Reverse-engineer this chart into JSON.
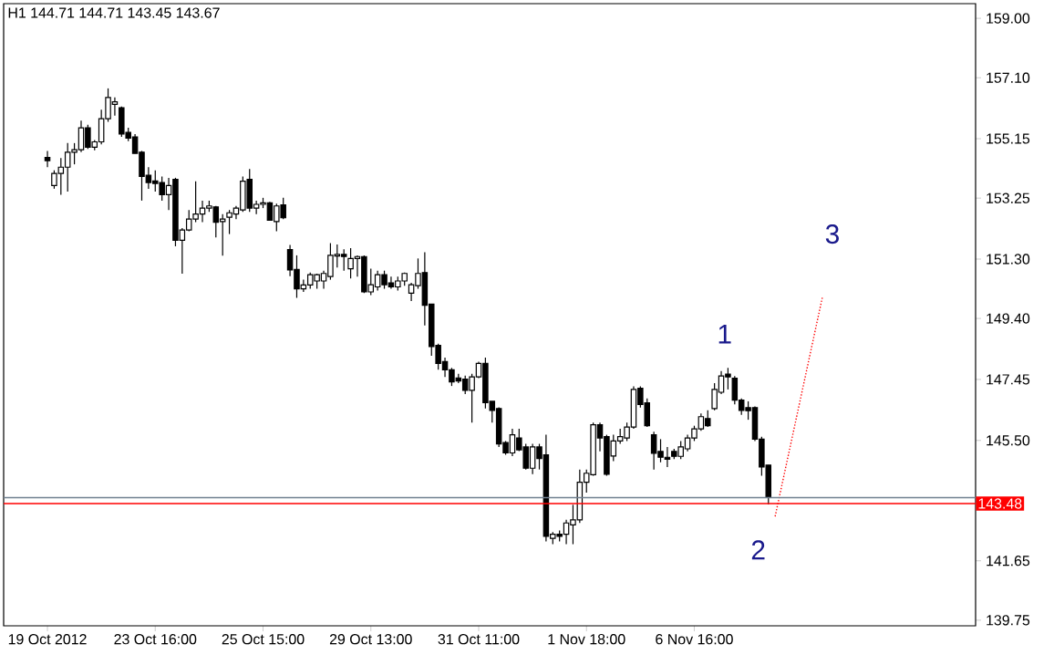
{
  "chart_data": {
    "type": "candlestick",
    "title": "H1  144.71 144.71 143.45 143.67",
    "categories": [
      "19 Oct 2012",
      null,
      null,
      null,
      null,
      null,
      null,
      null,
      null,
      null,
      null,
      null,
      null,
      null,
      null,
      null,
      "23 Oct 16:00",
      null,
      null,
      null,
      null,
      null,
      null,
      null,
      null,
      null,
      null,
      null,
      null,
      null,
      null,
      null,
      "25 Oct 15:00",
      null,
      null,
      null,
      null,
      null,
      null,
      null,
      null,
      null,
      null,
      null,
      null,
      null,
      null,
      null,
      "29 Oct 13:00",
      null,
      null,
      null,
      null,
      null,
      null,
      null,
      null,
      null,
      null,
      null,
      null,
      null,
      null,
      null,
      "31 Oct 11:00",
      null,
      null,
      null,
      null,
      null,
      null,
      null,
      null,
      null,
      null,
      null,
      null,
      null,
      null,
      null,
      "1 Nov 18:00",
      null,
      null,
      null,
      null,
      null,
      null,
      null,
      null,
      null,
      null,
      null,
      null,
      null,
      null,
      null,
      "6 Nov 16:00",
      null,
      null,
      null,
      null,
      null,
      null,
      null,
      null,
      null,
      null,
      null,
      null,
      null,
      null,
      null,
      null,
      null,
      null,
      null,
      null,
      null,
      null,
      null,
      null,
      null,
      null,
      null,
      null,
      null,
      null,
      null,
      null,
      null,
      null,
      null,
      null,
      null,
      null,
      null,
      null,
      null
    ],
    "color": "#000000",
    "ohlc": [
      [
        154.55,
        154.76,
        154.24,
        154.45
      ],
      [
        153.65,
        154.14,
        153.55,
        154.04
      ],
      [
        154.04,
        154.53,
        153.36,
        154.24
      ],
      [
        154.24,
        155.01,
        153.46,
        154.72
      ],
      [
        154.72,
        155.01,
        154.33,
        154.8
      ],
      [
        154.8,
        155.73,
        154.72,
        155.5
      ],
      [
        155.5,
        155.6,
        154.82,
        154.88
      ],
      [
        154.88,
        155.11,
        154.78,
        155.05
      ],
      [
        155.05,
        156.08,
        154.97,
        155.79
      ],
      [
        155.79,
        156.76,
        155.69,
        156.47
      ],
      [
        156.25,
        156.47,
        155.89,
        156.33
      ],
      [
        156.14,
        156.18,
        155.21,
        155.3
      ],
      [
        155.35,
        155.5,
        155.07,
        155.17
      ],
      [
        155.21,
        155.3,
        154.68,
        154.68
      ],
      [
        154.72,
        154.76,
        153.17,
        153.94
      ],
      [
        153.98,
        154.24,
        153.55,
        153.75
      ],
      [
        153.8,
        154.14,
        153.46,
        153.72
      ],
      [
        153.75,
        153.94,
        153.17,
        153.36
      ],
      [
        153.36,
        153.9,
        152.87,
        153.65
      ],
      [
        153.85,
        153.9,
        151.71,
        151.9
      ],
      [
        151.9,
        152.29,
        150.83,
        152.23
      ],
      [
        152.23,
        152.87,
        152.19,
        152.58
      ],
      [
        152.58,
        153.79,
        152.48,
        152.74
      ],
      [
        152.74,
        153.17,
        152.48,
        152.93
      ],
      [
        152.93,
        153.17,
        152.81,
        153.0
      ],
      [
        152.97,
        153.0,
        151.99,
        152.48
      ],
      [
        152.5,
        152.74,
        151.41,
        152.58
      ],
      [
        152.64,
        152.87,
        152.1,
        152.78
      ],
      [
        152.74,
        153.0,
        152.58,
        152.93
      ],
      [
        152.87,
        153.94,
        152.81,
        153.79
      ],
      [
        153.85,
        154.18,
        152.81,
        152.93
      ],
      [
        152.93,
        153.17,
        152.74,
        153.05
      ],
      [
        153.05,
        153.26,
        152.93,
        153.1
      ],
      [
        153.1,
        153.13,
        152.54,
        152.54
      ],
      [
        152.5,
        153.07,
        152.19,
        153.0
      ],
      [
        153.03,
        153.26,
        152.58,
        152.62
      ],
      [
        151.6,
        151.75,
        150.75,
        150.95
      ],
      [
        150.97,
        151.42,
        150.06,
        150.35
      ],
      [
        150.35,
        150.64,
        150.25,
        150.47
      ],
      [
        150.47,
        150.87,
        150.35,
        150.8
      ],
      [
        150.6,
        150.83,
        150.35,
        150.8
      ],
      [
        150.6,
        150.93,
        150.35,
        150.84
      ],
      [
        150.74,
        151.81,
        150.64,
        151.42
      ],
      [
        151.4,
        151.77,
        151.03,
        151.45
      ],
      [
        151.45,
        151.61,
        150.93,
        151.38
      ],
      [
        150.99,
        151.65,
        150.68,
        151.32
      ],
      [
        151.32,
        151.42,
        150.74,
        151.38
      ],
      [
        151.38,
        151.42,
        150.21,
        150.25
      ],
      [
        150.25,
        150.99,
        150.15,
        150.48
      ],
      [
        150.41,
        150.93,
        150.29,
        150.8
      ],
      [
        150.8,
        150.93,
        150.35,
        150.48
      ],
      [
        150.54,
        150.74,
        150.35,
        150.41
      ],
      [
        150.41,
        150.74,
        150.29,
        150.6
      ],
      [
        150.6,
        150.87,
        150.45,
        150.84
      ],
      [
        150.21,
        150.54,
        149.96,
        150.48
      ],
      [
        150.45,
        151.32,
        150.35,
        150.84
      ],
      [
        150.87,
        151.52,
        149.18,
        149.82
      ],
      [
        149.86,
        149.86,
        148.21,
        148.5
      ],
      [
        148.54,
        148.59,
        147.76,
        147.96
      ],
      [
        148.02,
        148.15,
        147.53,
        147.76
      ],
      [
        147.76,
        147.82,
        147.24,
        147.37
      ],
      [
        147.5,
        147.63,
        147.33,
        147.4
      ],
      [
        147.46,
        147.57,
        146.98,
        147.1
      ],
      [
        147.1,
        147.63,
        146.07,
        147.53
      ],
      [
        147.53,
        148.02,
        147.49,
        147.96
      ],
      [
        147.96,
        148.15,
        146.52,
        146.71
      ],
      [
        146.75,
        146.75,
        146.07,
        146.46
      ],
      [
        146.52,
        146.56,
        145.29,
        145.39
      ],
      [
        145.43,
        145.48,
        145.04,
        145.1
      ],
      [
        145.1,
        145.87,
        145.0,
        145.68
      ],
      [
        145.58,
        145.87,
        145.16,
        145.2
      ],
      [
        145.29,
        145.39,
        144.57,
        144.61
      ],
      [
        144.61,
        145.39,
        144.42,
        145.29
      ],
      [
        145.29,
        145.39,
        144.57,
        144.92
      ],
      [
        145.04,
        145.68,
        142.27,
        142.43
      ],
      [
        142.37,
        142.57,
        142.18,
        142.5
      ],
      [
        142.5,
        142.62,
        142.27,
        142.43
      ],
      [
        142.5,
        142.96,
        142.18,
        142.86
      ],
      [
        142.8,
        143.44,
        142.18,
        142.96
      ],
      [
        142.96,
        144.57,
        142.86,
        144.16
      ],
      [
        144.16,
        144.57,
        143.83,
        144.45
      ],
      [
        144.4,
        146.07,
        144.37,
        146.0
      ],
      [
        146.0,
        146.07,
        145.15,
        145.58
      ],
      [
        145.62,
        145.68,
        144.37,
        144.42
      ],
      [
        145.0,
        145.68,
        144.84,
        145.48
      ],
      [
        145.48,
        145.87,
        145.39,
        145.62
      ],
      [
        145.58,
        146.07,
        145.48,
        145.93
      ],
      [
        145.93,
        147.23,
        145.87,
        147.13
      ],
      [
        147.17,
        147.23,
        146.55,
        146.65
      ],
      [
        146.7,
        146.84,
        145.93,
        145.97
      ],
      [
        145.68,
        145.78,
        144.57,
        145.09
      ],
      [
        145.15,
        145.54,
        144.8,
        144.96
      ],
      [
        144.96,
        145.29,
        144.65,
        144.9
      ],
      [
        145.15,
        145.23,
        144.9,
        144.99
      ],
      [
        144.99,
        145.48,
        144.9,
        145.29
      ],
      [
        145.23,
        145.68,
        145.15,
        145.58
      ],
      [
        145.58,
        145.97,
        145.48,
        145.87
      ],
      [
        145.87,
        146.36,
        145.81,
        146.26
      ],
      [
        146.2,
        146.46,
        145.93,
        145.97
      ],
      [
        146.52,
        147.33,
        146.46,
        147.13
      ],
      [
        147.04,
        147.72,
        146.98,
        147.56
      ],
      [
        147.62,
        147.82,
        147.13,
        147.53
      ],
      [
        147.49,
        147.56,
        146.65,
        146.79
      ],
      [
        146.79,
        146.84,
        146.32,
        146.46
      ],
      [
        146.55,
        146.75,
        146.16,
        146.45
      ],
      [
        146.55,
        146.59,
        145.48,
        145.54
      ],
      [
        145.54,
        145.62,
        144.37,
        144.65
      ],
      [
        144.71,
        144.71,
        143.45,
        143.67
      ],
      null,
      null,
      null,
      null,
      null,
      null,
      null,
      null,
      null,
      null,
      null,
      null,
      null,
      null,
      null,
      null,
      null,
      null,
      null,
      null,
      null,
      null,
      null,
      null,
      null,
      null,
      null,
      null,
      null,
      null
    ],
    "series": [
      {
        "type": "line",
        "color": "#ff0000",
        "line_style": "dotted",
        "values": [
          null,
          null,
          null,
          null,
          null,
          null,
          null,
          null,
          null,
          null,
          null,
          null,
          null,
          null,
          null,
          null,
          null,
          null,
          null,
          null,
          null,
          null,
          null,
          null,
          null,
          null,
          null,
          null,
          null,
          null,
          null,
          null,
          null,
          null,
          null,
          null,
          null,
          null,
          null,
          null,
          null,
          null,
          null,
          null,
          null,
          null,
          null,
          null,
          null,
          null,
          null,
          null,
          null,
          null,
          null,
          null,
          null,
          null,
          null,
          null,
          null,
          null,
          null,
          null,
          null,
          null,
          null,
          null,
          null,
          null,
          null,
          null,
          null,
          null,
          null,
          null,
          null,
          null,
          null,
          null,
          null,
          null,
          null,
          null,
          null,
          null,
          null,
          null,
          null,
          null,
          null,
          null,
          null,
          null,
          null,
          null,
          null,
          null,
          null,
          null,
          null,
          null,
          null,
          null,
          null,
          null,
          null,
          null,
          143.07,
          144.07,
          145.07,
          146.07,
          147.07,
          148.07,
          149.07,
          150.07,
          null,
          null,
          null,
          null,
          null,
          null,
          null,
          null,
          null,
          null,
          null,
          null,
          null,
          null,
          null,
          null,
          null,
          null,
          null,
          null,
          null,
          null
        ]
      }
    ],
    "ylim": [
      139.57,
      159.47
    ],
    "yticks": [
      {
        "value": 139.75,
        "label": "139.75"
      },
      {
        "value": 141.65,
        "label": "141.65"
      },
      {
        "value": 143.55,
        "label": null
      },
      {
        "value": 145.5,
        "label": "145.50"
      },
      {
        "value": 147.45,
        "label": "147.45"
      },
      {
        "value": 149.4,
        "label": "149.40"
      },
      {
        "value": 151.3,
        "label": "151.30"
      },
      {
        "value": 153.25,
        "label": "153.25"
      },
      {
        "value": 155.15,
        "label": "155.15"
      },
      {
        "value": 157.1,
        "label": "157.10"
      },
      {
        "value": 159,
        "label": "159.00"
      }
    ],
    "ref_lines": [
      {
        "axis": "y",
        "value": 143.48,
        "label": "143.48",
        "color": "#ff0000"
      },
      {
        "axis": "y",
        "value": 143.67,
        "color": "#708090"
      }
    ],
    "annotations": [
      "1",
      "2",
      "3"
    ],
    "grid": false
  }
}
